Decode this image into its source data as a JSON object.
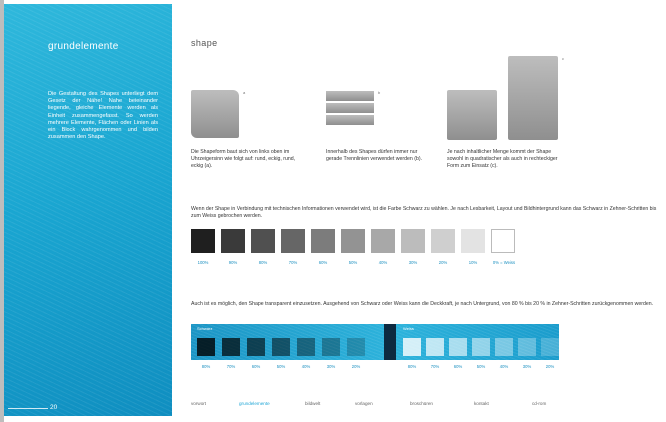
{
  "left": {
    "section_title": "grundelemente",
    "intro_text": "Die Gestaltung des Shapes unterliegt dem Gesetz der Nähe! Nahe beieinander liegende, gleiche Elemente werden als Einheit zusammengefasst. So werden mehrere Elemente, Flächen oder Linien als ein Block wahrgenommen und bilden zusammen den Shape.",
    "page_number": "20"
  },
  "right": {
    "title": "shape",
    "marks": {
      "a": "a",
      "b": "b",
      "c": "c"
    },
    "captions": [
      "Die Shapeform baut sich von links oben im Uhrzeigersinn wie folgt auf: rund, eckig, rund, eckig (a).",
      "Innerhalb des Shapes dürfen immer nur gerade Trennlinien verwendet werden (b).",
      "Je nach inhaltlicher Menge kommt der Shape sowohl in quadratischer als auch in rechteckiger Form zum Einsatz (c)."
    ],
    "black_intro": "Wenn der Shape in Verbindung mit technischen Informationen verwendet wird, ist die Farbe Schwarz zu wählen. Je nach Lesbarkeit, Layout und Bildhintergrund kann das Schwarz in Zehner-Schritten bis zum Weiss gebrochen werden.",
    "black_swatches": [
      {
        "label": "100%",
        "color": "#1f1f1f"
      },
      {
        "label": "90%",
        "color": "#3a3a3a"
      },
      {
        "label": "80%",
        "color": "#505050"
      },
      {
        "label": "70%",
        "color": "#666666"
      },
      {
        "label": "60%",
        "color": "#7c7c7c"
      },
      {
        "label": "50%",
        "color": "#939393"
      },
      {
        "label": "40%",
        "color": "#a8a8a8"
      },
      {
        "label": "30%",
        "color": "#bcbcbc"
      },
      {
        "label": "20%",
        "color": "#cfcfcf"
      },
      {
        "label": "10%",
        "color": "#e3e3e3"
      },
      {
        "label": "0% = Weiss",
        "color": "#ffffff"
      }
    ],
    "transparent_intro": "Auch ist es möglich, den Shape transparent einzusetzen. Ausgehend von Schwarz oder Weiss kann die Deckkraft, je nach Untergrund, von 80 % bis 20 % in Zehner-Schritten zurückgenommen werden.",
    "dark_band_label": "Schwarz",
    "light_band_label": "Weiss",
    "transparent_dark": [
      {
        "label": "80%",
        "opacity": 0.8
      },
      {
        "label": "70%",
        "opacity": 0.7
      },
      {
        "label": "60%",
        "opacity": 0.6
      },
      {
        "label": "50%",
        "opacity": 0.5
      },
      {
        "label": "40%",
        "opacity": 0.4
      },
      {
        "label": "30%",
        "opacity": 0.3
      },
      {
        "label": "20%",
        "opacity": 0.2
      }
    ],
    "transparent_light": [
      {
        "label": "80%",
        "opacity": 0.8
      },
      {
        "label": "70%",
        "opacity": 0.7
      },
      {
        "label": "60%",
        "opacity": 0.6
      },
      {
        "label": "50%",
        "opacity": 0.5
      },
      {
        "label": "40%",
        "opacity": 0.4
      },
      {
        "label": "30%",
        "opacity": 0.3
      },
      {
        "label": "20%",
        "opacity": 0.2
      }
    ]
  },
  "nav": {
    "items": [
      "vorwort",
      "grundelemente",
      "bildwelt",
      "vorlagen",
      "broschüren",
      "kontakt",
      "cd-rom"
    ],
    "active_index": 1,
    "accent_color": "#1fa6d6"
  }
}
